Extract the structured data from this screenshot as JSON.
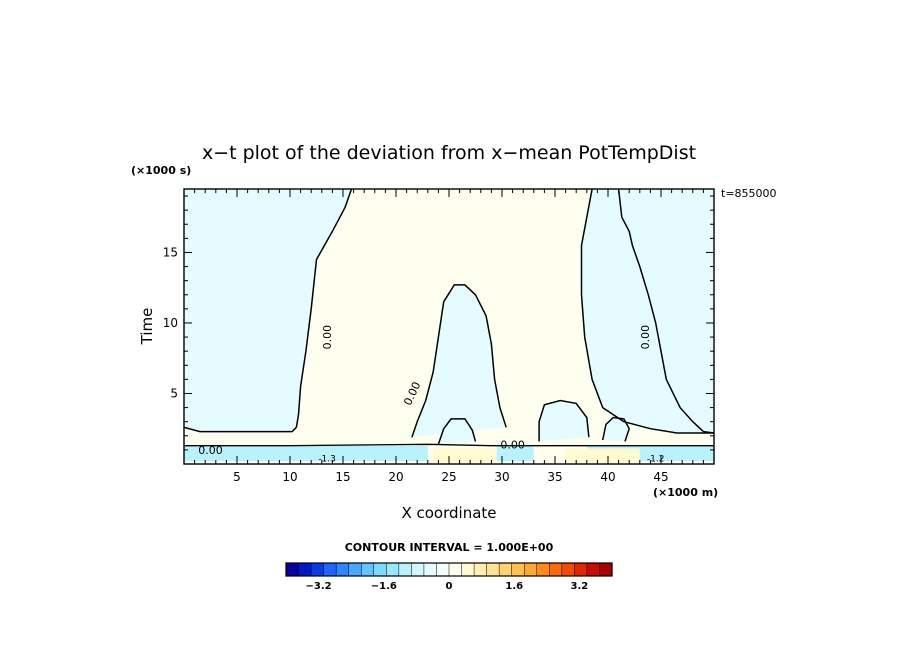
{
  "chart_data": {
    "type": "contour",
    "title": "x−t plot of the deviation from x−mean PotTempDist",
    "xlabel": "X coordinate",
    "ylabel": "Time",
    "x_unit": "(×1000 m)",
    "y_unit": "(×1000 s)",
    "time_stamp": "t=855000",
    "xlim": [
      0,
      50
    ],
    "ylim": [
      0,
      19.5
    ],
    "x_ticks": [
      5,
      10,
      15,
      20,
      25,
      30,
      35,
      40,
      45
    ],
    "y_ticks": [
      5,
      10,
      15
    ],
    "contour_interval_label": "CONTOUR INTERVAL = 1.000E+00",
    "contour_interval": 1.0,
    "zero_contour_label": "0.00",
    "zero_contour_label_positions": [
      [
        2.5,
        1.0
      ],
      [
        13.5,
        9.0
      ],
      [
        21.5,
        5.0
      ],
      [
        31.0,
        1.4
      ],
      [
        43.5,
        9.0
      ]
    ],
    "small_contour_labels": [
      {
        "text": "-1.3",
        "x": 13.5,
        "y": 0.4
      },
      {
        "text": "-1.2",
        "x": 44.5,
        "y": 0.4
      }
    ],
    "colorbar": {
      "range": [
        -4,
        4
      ],
      "ticks": [
        "−3.2",
        "−1.6",
        "0",
        "1.6",
        "3.2"
      ],
      "tick_values": [
        -3.2,
        -1.6,
        0,
        1.6,
        3.2
      ],
      "colors": [
        "#0a00a0",
        "#0018c8",
        "#0a3ce6",
        "#1e64ff",
        "#2e86ff",
        "#46a8ff",
        "#62c4ff",
        "#7cdaff",
        "#9ae8ff",
        "#b8f2ff",
        "#d2f8ff",
        "#e4fcff",
        "#f2fffe",
        "#fffff0",
        "#fffad0",
        "#fff0b0",
        "#ffe490",
        "#ffd470",
        "#ffc050",
        "#ffa830",
        "#ff8c18",
        "#ff6a08",
        "#f44a00",
        "#e02800",
        "#c80c00",
        "#a80000"
      ]
    },
    "zero_contour_paths": [
      [
        [
          0,
          2.6
        ],
        [
          1.5,
          2.3
        ],
        [
          4,
          2.3
        ],
        [
          6,
          2.3
        ],
        [
          8,
          2.3
        ],
        [
          10.2,
          2.3
        ],
        [
          10.6,
          2.6
        ],
        [
          10.8,
          3.5
        ],
        [
          11,
          5.5
        ],
        [
          11.5,
          8
        ],
        [
          12,
          11
        ],
        [
          12.5,
          14.5
        ],
        [
          14,
          16.5
        ],
        [
          15.2,
          18.2
        ],
        [
          15.8,
          19.5
        ]
      ],
      [
        [
          38.5,
          19.5
        ],
        [
          38,
          17.5
        ],
        [
          37.5,
          15.5
        ],
        [
          37.5,
          12
        ],
        [
          37.8,
          9
        ],
        [
          38.5,
          6
        ],
        [
          39.5,
          4
        ],
        [
          41.5,
          3
        ],
        [
          44,
          2.5
        ],
        [
          46.5,
          2.2
        ],
        [
          48.5,
          2.2
        ],
        [
          50,
          2.2
        ]
      ],
      [
        [
          21.5,
          1.9
        ],
        [
          22,
          3
        ],
        [
          22.8,
          4.5
        ],
        [
          23.5,
          6.5
        ],
        [
          24,
          9
        ],
        [
          24.5,
          11.5
        ],
        [
          25.5,
          12.7
        ],
        [
          26.5,
          12.7
        ],
        [
          27.5,
          12
        ],
        [
          28.5,
          10.5
        ],
        [
          29,
          8.5
        ],
        [
          29.3,
          6
        ],
        [
          29.8,
          4
        ],
        [
          30.4,
          2.6
        ]
      ],
      [
        [
          41,
          19.5
        ],
        [
          41.3,
          17.5
        ],
        [
          42,
          16.5
        ],
        [
          42.3,
          15.5
        ],
        [
          43,
          14
        ],
        [
          43.8,
          12
        ],
        [
          44.5,
          10
        ],
        [
          45,
          8
        ],
        [
          45.5,
          6
        ],
        [
          46.8,
          4
        ],
        [
          48,
          3
        ],
        [
          49,
          2.3
        ],
        [
          50,
          2.2
        ]
      ],
      [
        [
          24,
          1.4
        ],
        [
          24.5,
          2.5
        ],
        [
          25.2,
          3.2
        ],
        [
          26.5,
          3.2
        ],
        [
          27.2,
          2.4
        ],
        [
          27.5,
          1.6
        ]
      ],
      [
        [
          33.5,
          1.6
        ],
        [
          33.5,
          3
        ],
        [
          34,
          4.2
        ],
        [
          35.5,
          4.5
        ],
        [
          37,
          4.3
        ],
        [
          38,
          3.3
        ],
        [
          38.2,
          1.9
        ]
      ],
      [
        [
          39.5,
          1.7
        ],
        [
          39.8,
          2.8
        ],
        [
          40.5,
          3.3
        ],
        [
          41.5,
          3.2
        ],
        [
          42,
          2.5
        ],
        [
          41.6,
          1.6
        ]
      ]
    ],
    "cold_band": {
      "y_range": [
        0.2,
        1.3
      ],
      "x_ranges": [
        [
          0,
          23
        ],
        [
          29.5,
          33
        ],
        [
          38,
          50
        ]
      ]
    },
    "warm_band": {
      "y_range": [
        0.1,
        1.1
      ],
      "x_ranges": [
        [
          23.5,
          29.5
        ],
        [
          36,
          43
        ]
      ]
    }
  }
}
